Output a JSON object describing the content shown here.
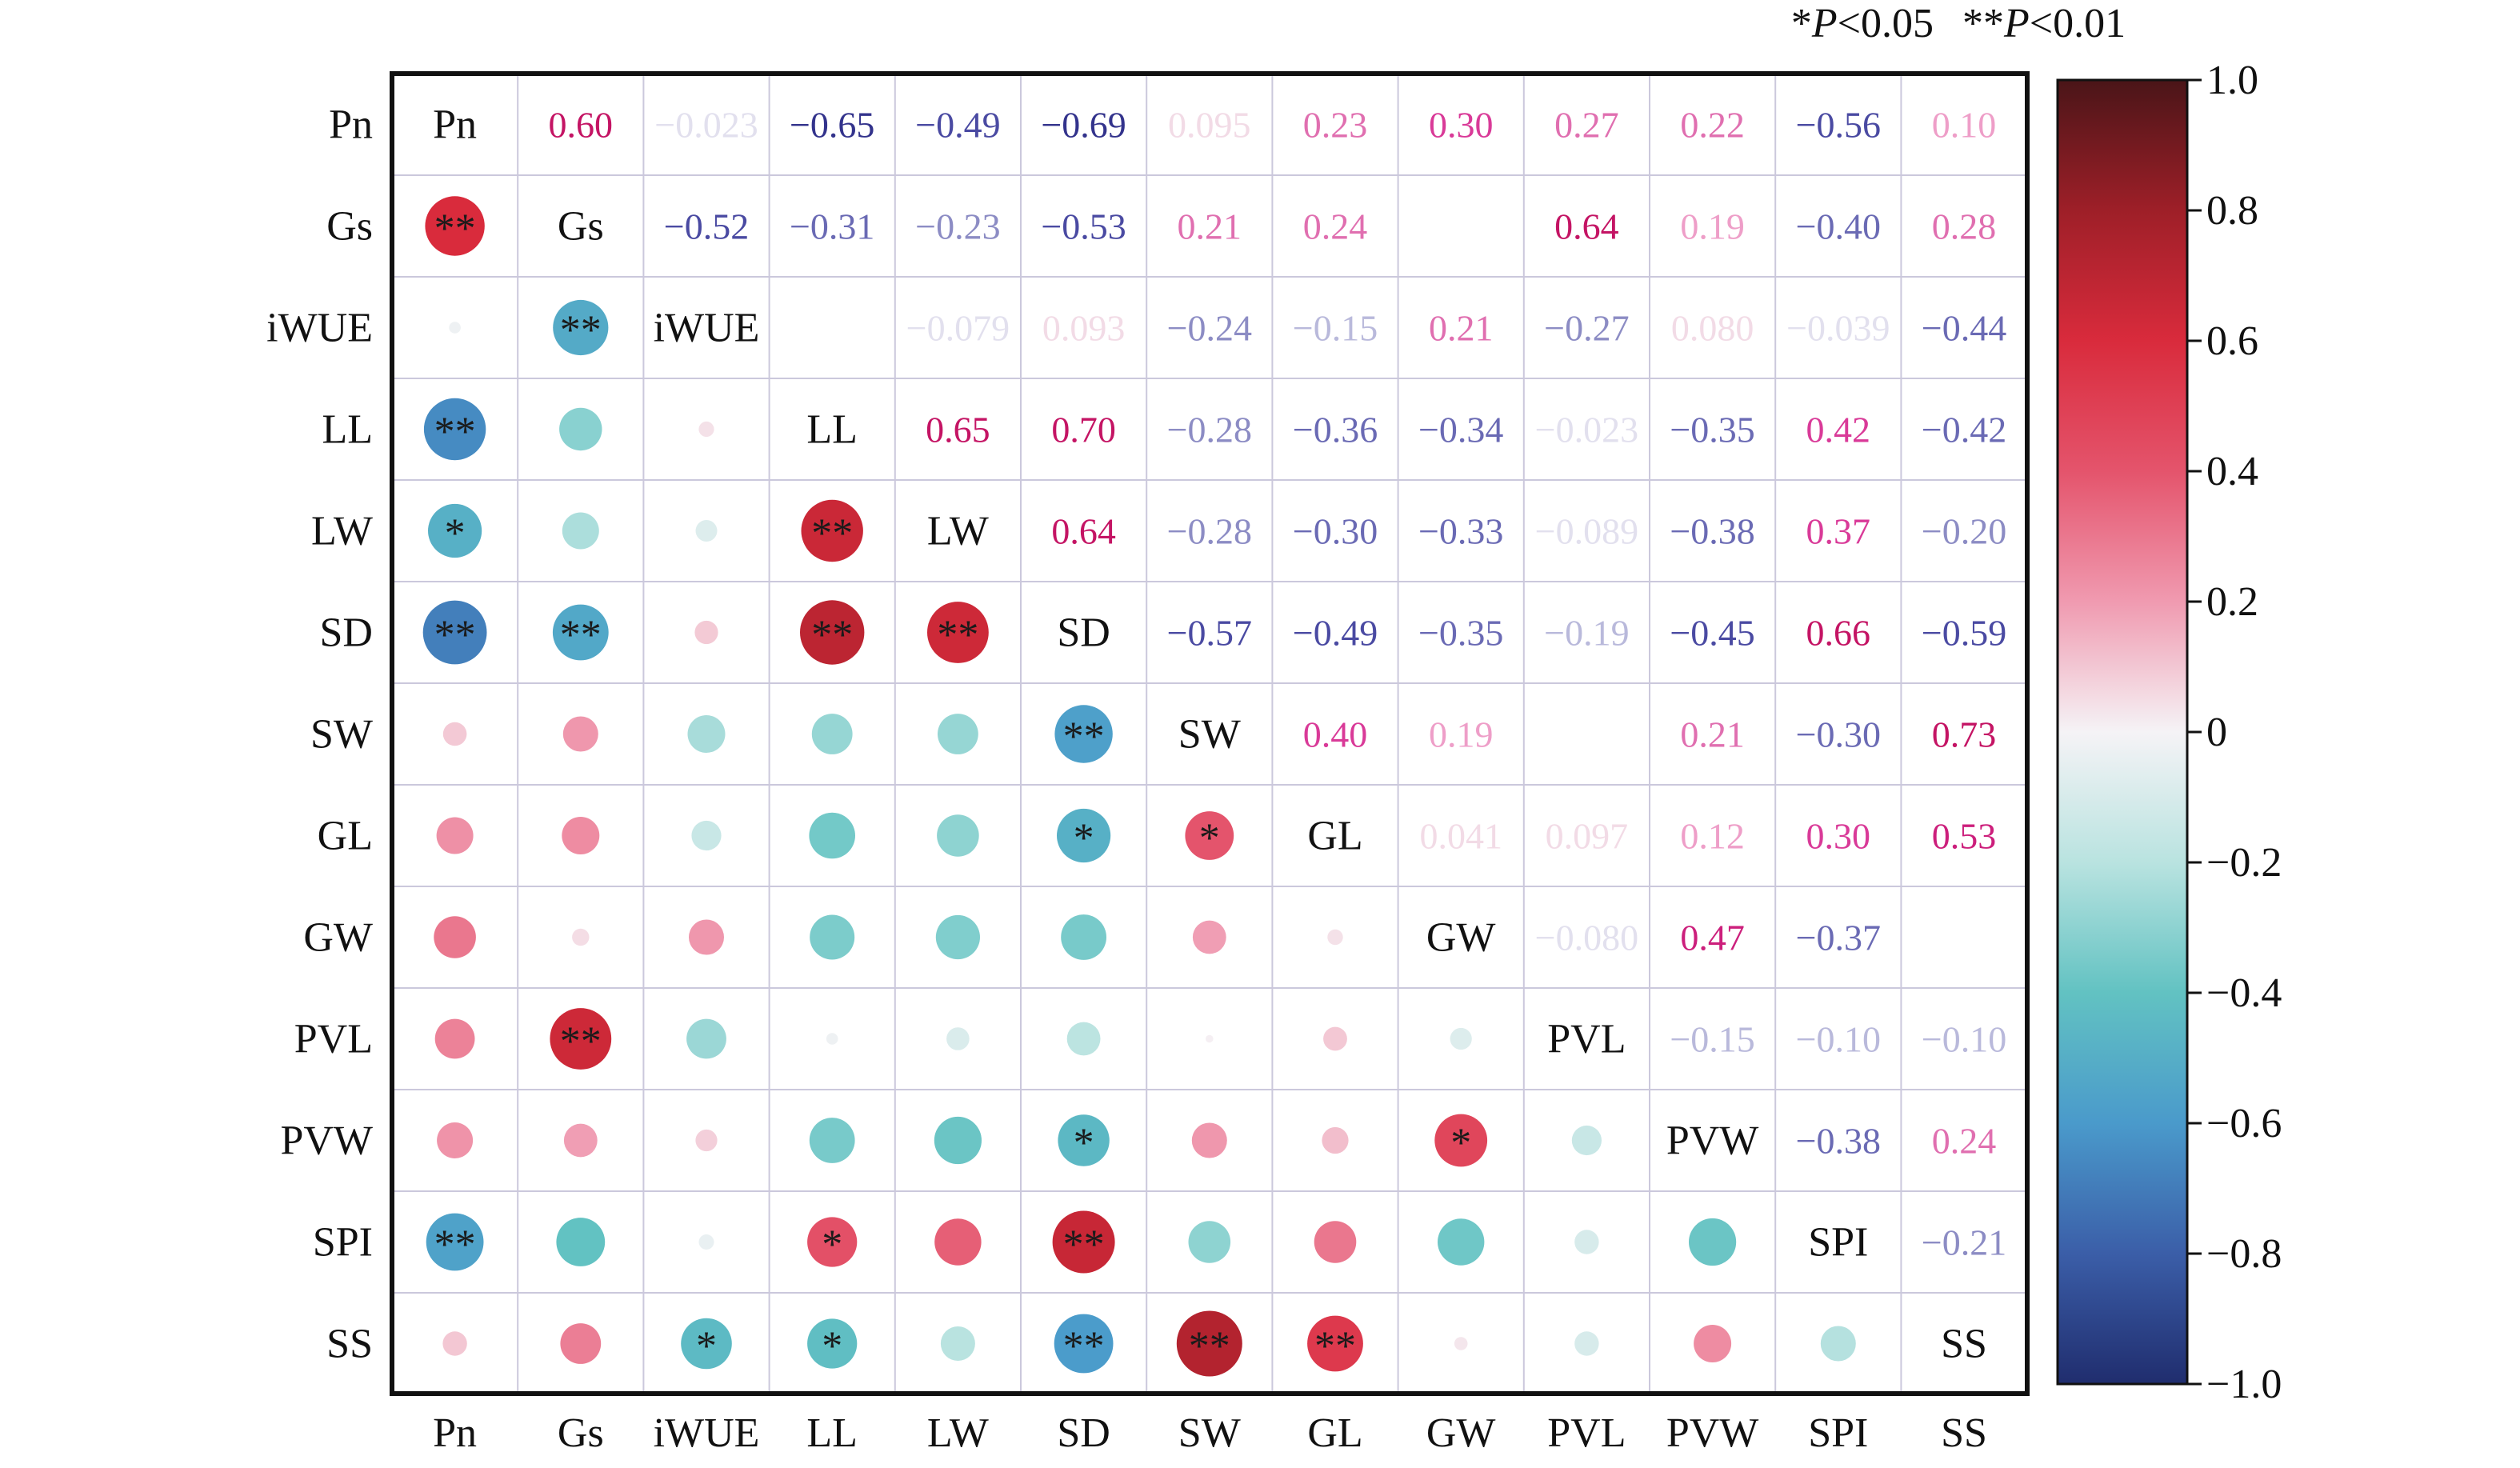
{
  "chart_data": {
    "type": "heatmap",
    "variables": [
      "Pn",
      "Gs",
      "iWUE",
      "LL",
      "LW",
      "SD",
      "SW",
      "GL",
      "GW",
      "PVL",
      "PVW",
      "SPI",
      "SS"
    ],
    "legend_note_parts": [
      "*",
      "P",
      "<0.05",
      "**",
      "P",
      "<0.01"
    ],
    "colorbar": {
      "ticks": [
        "1.0",
        "0.8",
        "0.6",
        "0.4",
        "0.2",
        "0",
        "−0.2",
        "−0.4",
        "−0.6",
        "−0.8",
        "−1.0"
      ],
      "range": [
        -1,
        1
      ]
    },
    "upper_labels": [
      [
        "",
        "0.60",
        "−0.023",
        "−0.65",
        "−0.49",
        "−0.69",
        "0.095",
        "0.23",
        "0.30",
        "0.27",
        "0.22",
        "−0.56",
        "0.10"
      ],
      [
        "",
        "",
        "−0.52",
        "−0.31",
        "−0.23",
        "−0.53",
        "0.21",
        "0.24",
        "",
        "0.64",
        "0.19",
        "−0.40",
        "0.28"
      ],
      [
        "",
        "",
        "",
        "",
        "−0.079",
        "0.093",
        "−0.24",
        "−0.15",
        "0.21",
        "−0.27",
        "0.080",
        "−0.039",
        "−0.44"
      ],
      [
        "",
        "",
        "",
        "",
        "0.65",
        "0.70",
        "−0.28",
        "−0.36",
        "−0.34",
        "−0.023",
        "−0.35",
        "0.42",
        "−0.42"
      ],
      [
        "",
        "",
        "",
        "",
        "",
        "0.64",
        "−0.28",
        "−0.30",
        "−0.33",
        "−0.089",
        "−0.38",
        "0.37",
        "−0.20"
      ],
      [
        "",
        "",
        "",
        "",
        "",
        "",
        "−0.57",
        "−0.49",
        "−0.35",
        "−0.19",
        "−0.45",
        "0.66",
        "−0.59"
      ],
      [
        "",
        "",
        "",
        "",
        "",
        "",
        "",
        "0.40",
        "0.19",
        "",
        "0.21",
        "−0.30",
        "0.73"
      ],
      [
        "",
        "",
        "",
        "",
        "",
        "",
        "",
        "",
        "0.041",
        "0.097",
        "0.12",
        "0.30",
        "0.53"
      ],
      [
        "",
        "",
        "",
        "",
        "",
        "",
        "",
        "",
        "",
        "−0.080",
        "0.47",
        "−0.37",
        ""
      ],
      [
        "",
        "",
        "",
        "",
        "",
        "",
        "",
        "",
        "",
        "",
        "−0.15",
        "−0.10",
        "−0.10"
      ],
      [
        "",
        "",
        "",
        "",
        "",
        "",
        "",
        "",
        "",
        "",
        "",
        "−0.38",
        "0.24"
      ],
      [
        "",
        "",
        "",
        "",
        "",
        "",
        "",
        "",
        "",
        "",
        "",
        "",
        "−0.21"
      ],
      [
        "",
        "",
        "",
        "",
        "",
        "",
        "",
        "",
        "",
        "",
        "",
        "",
        ""
      ]
    ],
    "upper_values": [
      [
        null,
        0.6,
        -0.023,
        -0.65,
        -0.49,
        -0.69,
        0.095,
        0.23,
        0.3,
        0.27,
        0.22,
        -0.56,
        0.1
      ],
      [
        null,
        null,
        -0.52,
        -0.31,
        -0.23,
        -0.53,
        0.21,
        0.24,
        null,
        0.64,
        0.19,
        -0.4,
        0.28
      ],
      [
        null,
        null,
        null,
        null,
        -0.079,
        0.093,
        -0.24,
        -0.15,
        0.21,
        -0.27,
        0.08,
        -0.039,
        -0.44
      ],
      [
        null,
        null,
        null,
        null,
        0.65,
        0.7,
        -0.28,
        -0.36,
        -0.34,
        -0.023,
        -0.35,
        0.42,
        -0.42
      ],
      [
        null,
        null,
        null,
        null,
        null,
        0.64,
        -0.28,
        -0.3,
        -0.33,
        -0.089,
        -0.38,
        0.37,
        -0.2
      ],
      [
        null,
        null,
        null,
        null,
        null,
        null,
        -0.57,
        -0.49,
        -0.35,
        -0.19,
        -0.45,
        0.66,
        -0.59
      ],
      [
        null,
        null,
        null,
        null,
        null,
        null,
        null,
        0.4,
        0.19,
        null,
        0.21,
        -0.3,
        0.73
      ],
      [
        null,
        null,
        null,
        null,
        null,
        null,
        null,
        null,
        0.041,
        0.097,
        0.12,
        0.3,
        0.53
      ],
      [
        null,
        null,
        null,
        null,
        null,
        null,
        null,
        null,
        null,
        -0.08,
        0.47,
        -0.37,
        null
      ],
      [
        null,
        null,
        null,
        null,
        null,
        null,
        null,
        null,
        null,
        null,
        -0.15,
        -0.1,
        -0.1
      ],
      [
        null,
        null,
        null,
        null,
        null,
        null,
        null,
        null,
        null,
        null,
        null,
        -0.38,
        0.24
      ],
      [
        null,
        null,
        null,
        null,
        null,
        null,
        null,
        null,
        null,
        null,
        null,
        null,
        -0.21
      ],
      [
        null,
        null,
        null,
        null,
        null,
        null,
        null,
        null,
        null,
        null,
        null,
        null,
        null
      ]
    ],
    "lower_circles": [
      {
        "row": 1,
        "col": 0,
        "value": 0.6,
        "sig": "**"
      },
      {
        "row": 2,
        "col": 0,
        "value": -0.023,
        "sig": ""
      },
      {
        "row": 2,
        "col": 1,
        "value": -0.52,
        "sig": "**"
      },
      {
        "row": 3,
        "col": 0,
        "value": -0.65,
        "sig": "**"
      },
      {
        "row": 3,
        "col": 1,
        "value": -0.31,
        "sig": ""
      },
      {
        "row": 3,
        "col": 2,
        "value": 0.04,
        "sig": ""
      },
      {
        "row": 4,
        "col": 0,
        "value": -0.49,
        "sig": "*"
      },
      {
        "row": 4,
        "col": 1,
        "value": -0.23,
        "sig": ""
      },
      {
        "row": 4,
        "col": 2,
        "value": -0.079,
        "sig": ""
      },
      {
        "row": 4,
        "col": 3,
        "value": 0.65,
        "sig": "**"
      },
      {
        "row": 5,
        "col": 0,
        "value": -0.69,
        "sig": "**"
      },
      {
        "row": 5,
        "col": 1,
        "value": -0.53,
        "sig": "**"
      },
      {
        "row": 5,
        "col": 2,
        "value": 0.093,
        "sig": ""
      },
      {
        "row": 5,
        "col": 3,
        "value": 0.7,
        "sig": "**"
      },
      {
        "row": 5,
        "col": 4,
        "value": 0.64,
        "sig": "**"
      },
      {
        "row": 6,
        "col": 0,
        "value": 0.095,
        "sig": ""
      },
      {
        "row": 6,
        "col": 1,
        "value": 0.21,
        "sig": ""
      },
      {
        "row": 6,
        "col": 2,
        "value": -0.24,
        "sig": ""
      },
      {
        "row": 6,
        "col": 3,
        "value": -0.28,
        "sig": ""
      },
      {
        "row": 6,
        "col": 4,
        "value": -0.28,
        "sig": ""
      },
      {
        "row": 6,
        "col": 5,
        "value": -0.57,
        "sig": "**"
      },
      {
        "row": 7,
        "col": 0,
        "value": 0.23,
        "sig": ""
      },
      {
        "row": 7,
        "col": 1,
        "value": 0.24,
        "sig": ""
      },
      {
        "row": 7,
        "col": 2,
        "value": -0.15,
        "sig": ""
      },
      {
        "row": 7,
        "col": 3,
        "value": -0.36,
        "sig": ""
      },
      {
        "row": 7,
        "col": 4,
        "value": -0.3,
        "sig": ""
      },
      {
        "row": 7,
        "col": 5,
        "value": -0.49,
        "sig": "*"
      },
      {
        "row": 7,
        "col": 6,
        "value": 0.4,
        "sig": "*"
      },
      {
        "row": 8,
        "col": 0,
        "value": 0.3,
        "sig": ""
      },
      {
        "row": 8,
        "col": 1,
        "value": 0.05,
        "sig": ""
      },
      {
        "row": 8,
        "col": 2,
        "value": 0.21,
        "sig": ""
      },
      {
        "row": 8,
        "col": 3,
        "value": -0.34,
        "sig": ""
      },
      {
        "row": 8,
        "col": 4,
        "value": -0.33,
        "sig": ""
      },
      {
        "row": 8,
        "col": 5,
        "value": -0.35,
        "sig": ""
      },
      {
        "row": 8,
        "col": 6,
        "value": 0.19,
        "sig": ""
      },
      {
        "row": 8,
        "col": 7,
        "value": 0.041,
        "sig": ""
      },
      {
        "row": 9,
        "col": 0,
        "value": 0.27,
        "sig": ""
      },
      {
        "row": 9,
        "col": 1,
        "value": 0.64,
        "sig": "**"
      },
      {
        "row": 9,
        "col": 2,
        "value": -0.27,
        "sig": ""
      },
      {
        "row": 9,
        "col": 3,
        "value": -0.023,
        "sig": ""
      },
      {
        "row": 9,
        "col": 4,
        "value": -0.089,
        "sig": ""
      },
      {
        "row": 9,
        "col": 5,
        "value": -0.19,
        "sig": ""
      },
      {
        "row": 9,
        "col": 6,
        "value": 0.01,
        "sig": ""
      },
      {
        "row": 9,
        "col": 7,
        "value": 0.097,
        "sig": ""
      },
      {
        "row": 9,
        "col": 8,
        "value": -0.08,
        "sig": ""
      },
      {
        "row": 10,
        "col": 0,
        "value": 0.22,
        "sig": ""
      },
      {
        "row": 10,
        "col": 1,
        "value": 0.19,
        "sig": ""
      },
      {
        "row": 10,
        "col": 2,
        "value": 0.08,
        "sig": ""
      },
      {
        "row": 10,
        "col": 3,
        "value": -0.35,
        "sig": ""
      },
      {
        "row": 10,
        "col": 4,
        "value": -0.38,
        "sig": ""
      },
      {
        "row": 10,
        "col": 5,
        "value": -0.45,
        "sig": "*"
      },
      {
        "row": 10,
        "col": 6,
        "value": 0.21,
        "sig": ""
      },
      {
        "row": 10,
        "col": 7,
        "value": 0.12,
        "sig": ""
      },
      {
        "row": 10,
        "col": 8,
        "value": 0.47,
        "sig": "*"
      },
      {
        "row": 10,
        "col": 9,
        "value": -0.15,
        "sig": ""
      },
      {
        "row": 11,
        "col": 0,
        "value": -0.56,
        "sig": "**"
      },
      {
        "row": 11,
        "col": 1,
        "value": -0.4,
        "sig": ""
      },
      {
        "row": 11,
        "col": 2,
        "value": -0.039,
        "sig": ""
      },
      {
        "row": 11,
        "col": 3,
        "value": 0.42,
        "sig": "*"
      },
      {
        "row": 11,
        "col": 4,
        "value": 0.37,
        "sig": ""
      },
      {
        "row": 11,
        "col": 5,
        "value": 0.66,
        "sig": "**"
      },
      {
        "row": 11,
        "col": 6,
        "value": -0.3,
        "sig": ""
      },
      {
        "row": 11,
        "col": 7,
        "value": 0.3,
        "sig": ""
      },
      {
        "row": 11,
        "col": 8,
        "value": -0.37,
        "sig": ""
      },
      {
        "row": 11,
        "col": 9,
        "value": -0.1,
        "sig": ""
      },
      {
        "row": 11,
        "col": 10,
        "value": -0.38,
        "sig": ""
      },
      {
        "row": 12,
        "col": 0,
        "value": 0.1,
        "sig": ""
      },
      {
        "row": 12,
        "col": 1,
        "value": 0.28,
        "sig": ""
      },
      {
        "row": 12,
        "col": 2,
        "value": -0.44,
        "sig": "*"
      },
      {
        "row": 12,
        "col": 3,
        "value": -0.42,
        "sig": "*"
      },
      {
        "row": 12,
        "col": 4,
        "value": -0.2,
        "sig": ""
      },
      {
        "row": 12,
        "col": 5,
        "value": -0.59,
        "sig": "**"
      },
      {
        "row": 12,
        "col": 6,
        "value": 0.73,
        "sig": "**"
      },
      {
        "row": 12,
        "col": 7,
        "value": 0.53,
        "sig": "**"
      },
      {
        "row": 12,
        "col": 8,
        "value": 0.03,
        "sig": ""
      },
      {
        "row": 12,
        "col": 9,
        "value": -0.1,
        "sig": ""
      },
      {
        "row": 12,
        "col": 10,
        "value": 0.24,
        "sig": ""
      },
      {
        "row": 12,
        "col": 11,
        "value": -0.21,
        "sig": ""
      }
    ]
  }
}
